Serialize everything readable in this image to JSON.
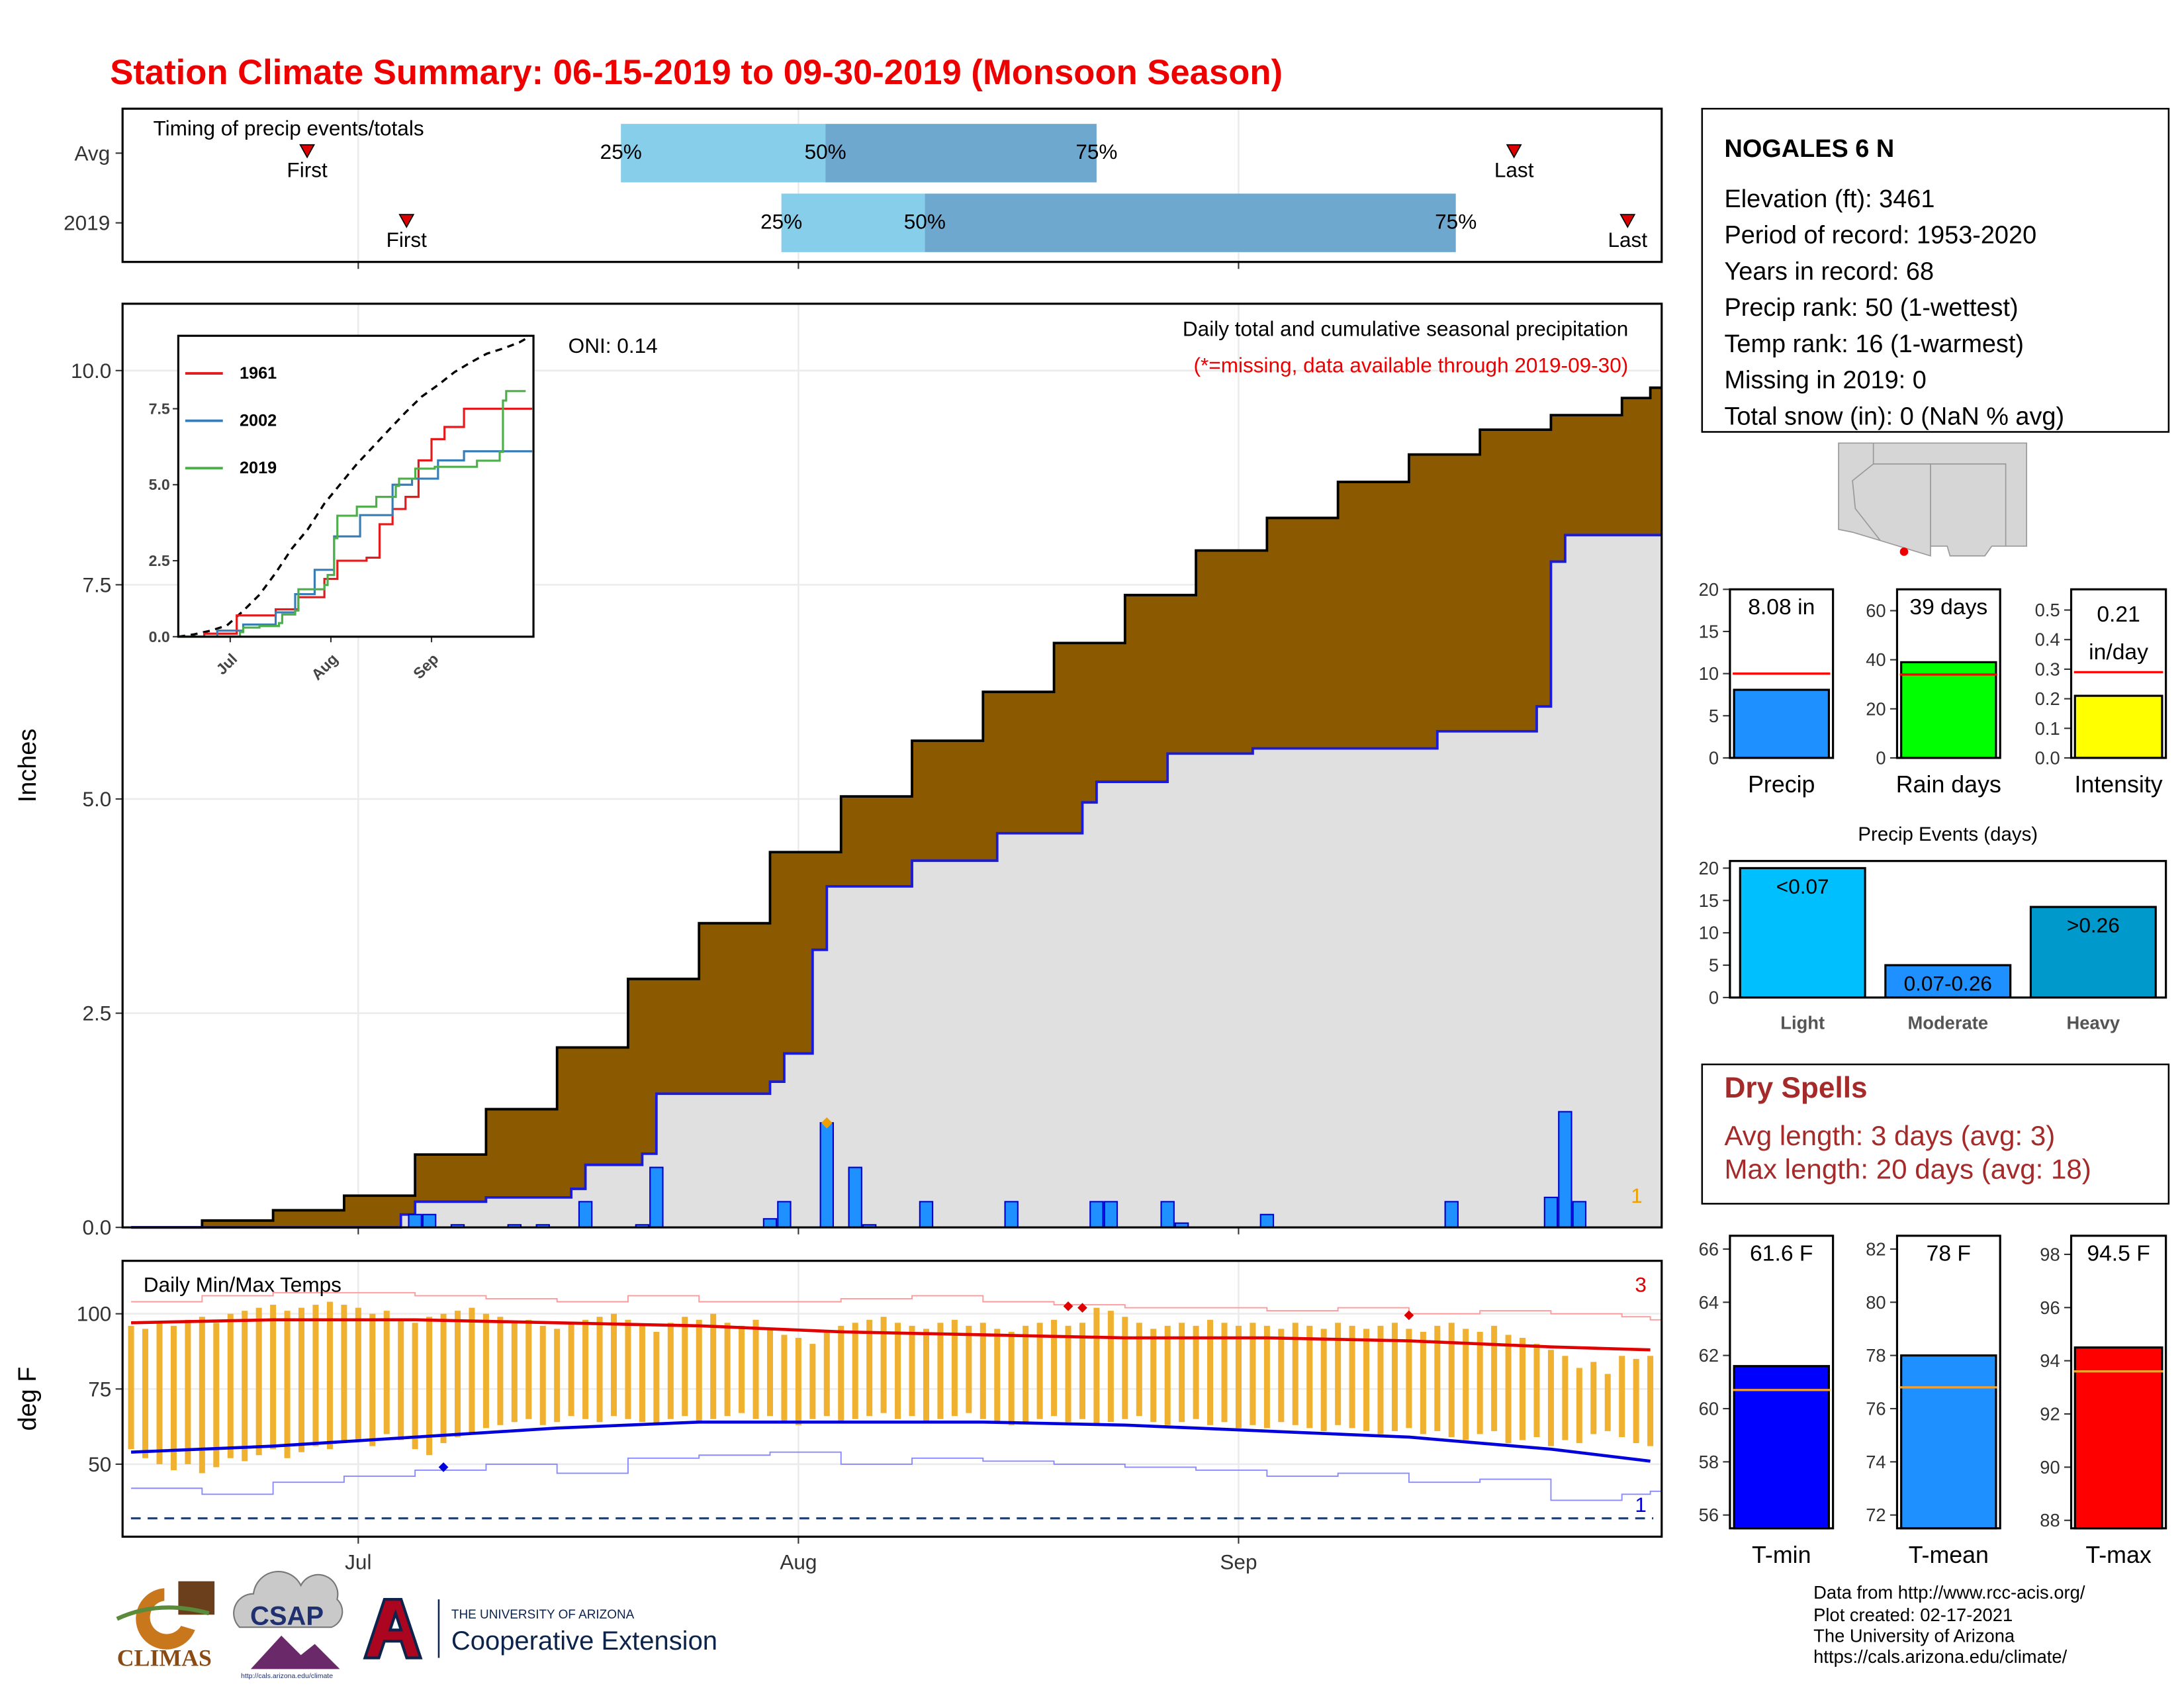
{
  "title": "Station Climate Summary: 06-15-2019 to 09-30-2019 (Monsoon Season)",
  "station": {
    "name": "NOGALES 6 N",
    "lines": [
      "Elevation (ft): 3461",
      "Period of record: 1953-2020",
      "Years in record: 68",
      "Precip rank: 50 (1-wettest)",
      "Temp rank: 16 (1-warmest)",
      "Missing in 2019: 0",
      "Total snow (in): 0 (NaN % avg)"
    ]
  },
  "dry_spells": {
    "title": "Dry Spells",
    "lines": [
      "Avg length: 3 days (avg: 3)",
      "Max length: 20 days (avg: 18)"
    ]
  },
  "footer": {
    "lines": [
      "Data from http://www.rcc-acis.org/",
      "Plot created: 02-17-2021",
      "The University of Arizona",
      "https://cals.arizona.edu/climate/"
    ]
  },
  "logos": {
    "climas": "CLIMAS",
    "csap": "CSAP",
    "csap_url": "http://cals.arizona.edu/climate",
    "ua_small": "THE UNIVERSITY OF ARIZONA",
    "ua_big": "Cooperative Extension"
  },
  "chart_data": [
    {
      "type": "timeline",
      "title": "Timing of precip events/totals",
      "xlim": [
        -0.6,
        107.8
      ],
      "xticks": [
        16,
        47,
        78
      ],
      "first_label": "First",
      "last_label": "Last",
      "quantile_labels": [
        "25%",
        "50%",
        "75%"
      ],
      "light_color": "#87ceeb",
      "dark_color": "#6fa8cf",
      "marker_color": "#dd0000",
      "rows": [
        {
          "name": "Avg",
          "first": 12.4,
          "q25": 34.5,
          "q50": 48.9,
          "q75": 68,
          "last": 97.4
        },
        {
          "name": "2019",
          "first": 19.4,
          "q25": 45.8,
          "q50": 55.9,
          "q75": 93.3,
          "last": 105.4
        }
      ]
    },
    {
      "type": "precip",
      "ylabel": "Inches",
      "annotation": "Daily total and cumulative seasonal precipitation",
      "note": "(*=missing, data available through 2019-09-30)",
      "oni": "ONI: 0.14",
      "record_count": 1,
      "xlim": [
        -0.6,
        107.8
      ],
      "xticks": [
        16,
        47,
        78
      ],
      "ylim": [
        0,
        10.78
      ],
      "yticks": [
        {
          "value": 0,
          "label": "0.0"
        },
        2.5,
        {
          "value": 5,
          "label": "5.0"
        },
        7.5,
        {
          "value": 10,
          "label": "10.0"
        }
      ],
      "avg_cumulative": {
        "color": "#8b5a00",
        "x": [
          0,
          5,
          10,
          15,
          20,
          25,
          30,
          35,
          40,
          45,
          50,
          55,
          60,
          65,
          70,
          75,
          80,
          85,
          90,
          95,
          100,
          105,
          107
        ],
        "values": [
          0,
          0.08,
          0.2,
          0.37,
          0.85,
          1.38,
          2.1,
          2.9,
          3.55,
          4.38,
          5.03,
          5.68,
          6.25,
          6.82,
          7.38,
          7.9,
          8.28,
          8.7,
          9.02,
          9.31,
          9.48,
          9.68,
          9.8
        ]
      },
      "cumulative": {
        "color": "#1a1adb",
        "x": [
          0,
          19,
          20,
          25,
          31,
          32,
          36,
          37,
          45,
          46,
          48,
          49,
          55,
          61,
          67,
          68,
          73,
          79,
          92,
          99,
          100,
          101,
          107
        ],
        "values": [
          0,
          0.15,
          0.3,
          0.35,
          0.45,
          0.73,
          0.86,
          1.56,
          1.7,
          2.03,
          3.24,
          3.98,
          4.28,
          4.6,
          4.96,
          5.2,
          5.53,
          5.59,
          5.79,
          6.08,
          7.77,
          8.08,
          8.08
        ]
      },
      "daily": {
        "color": "#1e90ff",
        "x": [
          20,
          21,
          23,
          27,
          29,
          32,
          36,
          37,
          45,
          46,
          49,
          51,
          52,
          56,
          62,
          68,
          69,
          73,
          74,
          80,
          93,
          100,
          101,
          102
        ],
        "values": [
          0.15,
          0.15,
          0.03,
          0.03,
          0.03,
          0.3,
          0.03,
          0.7,
          0.1,
          0.3,
          1.22,
          0.7,
          0.03,
          0.3,
          0.3,
          0.3,
          0.3,
          0.3,
          0.05,
          0.15,
          0.3,
          0.35,
          1.35,
          0.3
        ]
      },
      "records": {
        "color": "#f0a000",
        "x": [
          49
        ],
        "values": [
          1.22
        ]
      }
    },
    {
      "type": "line",
      "xlim": [
        0,
        109.4
      ],
      "ylim": [
        0,
        9.9
      ],
      "xticks": [
        {
          "value": 16,
          "label": "Jul"
        },
        {
          "value": 47,
          "label": "Aug"
        },
        {
          "value": 78,
          "label": "Sep"
        }
      ],
      "yticks": [
        {
          "value": 0,
          "label": "0.0"
        },
        2.5,
        {
          "value": 5,
          "label": "5.0"
        },
        7.5
      ],
      "avg": {
        "color": "#000000",
        "x": [
          0,
          5,
          10,
          15,
          20,
          25,
          30,
          35,
          40,
          45,
          50,
          55,
          60,
          65,
          70,
          75,
          80,
          85,
          90,
          95,
          100,
          105,
          107
        ],
        "values": [
          0,
          0.08,
          0.2,
          0.37,
          0.85,
          1.38,
          2.1,
          2.9,
          3.55,
          4.38,
          5.03,
          5.68,
          6.25,
          6.82,
          7.38,
          7.9,
          8.28,
          8.7,
          9.02,
          9.31,
          9.48,
          9.68,
          9.8
        ]
      },
      "series": [
        {
          "name": "1961",
          "color": "#e41a1c",
          "x": [
            0,
            8,
            18,
            30,
            37,
            45,
            49,
            58,
            62,
            66,
            70,
            74,
            78,
            82,
            88,
            109
          ],
          "values": [
            0,
            0.1,
            0.7,
            0.9,
            1.3,
            1.9,
            2.5,
            2.6,
            3.7,
            4.2,
            4.6,
            5.8,
            6.5,
            6.9,
            7.5,
            7.5
          ]
        },
        {
          "name": "2002",
          "color": "#377eb8",
          "x": [
            0,
            12,
            20,
            30,
            36,
            42,
            48,
            56,
            66,
            72,
            80,
            88,
            109
          ],
          "values": [
            0,
            0.2,
            0.4,
            0.8,
            1.4,
            2.2,
            3.3,
            4,
            5,
            5.2,
            5.8,
            6.1,
            6.1
          ]
        },
        {
          "name": "2019",
          "color": "#4daf4a",
          "x": [
            0,
            19,
            20,
            25,
            31,
            32,
            36,
            37,
            45,
            46,
            48,
            49,
            55,
            61,
            67,
            68,
            73,
            79,
            92,
            99,
            100,
            101,
            107
          ],
          "values": [
            0,
            0.15,
            0.3,
            0.35,
            0.45,
            0.73,
            0.86,
            1.56,
            1.7,
            2.03,
            3.24,
            3.98,
            4.28,
            4.6,
            4.96,
            5.2,
            5.53,
            5.59,
            5.79,
            6.08,
            7.77,
            8.08,
            8.08
          ]
        }
      ]
    },
    {
      "type": "temps",
      "title": "Daily Min/Max Temps",
      "ylabel": "deg F",
      "record_high_count": 3,
      "record_low_count": 1,
      "xlim": [
        -0.6,
        107.8
      ],
      "ylim": [
        25.9,
        117.6
      ],
      "yticks": [
        50,
        75,
        100
      ],
      "xticks": [
        {
          "value": 16,
          "label": "Jul"
        },
        {
          "value": 47,
          "label": "Aug"
        },
        {
          "value": 78,
          "label": "Sep"
        }
      ],
      "freeze": 32,
      "color": "#f0b030",
      "x": [
        0,
        1,
        2,
        3,
        4,
        5,
        6,
        7,
        8,
        9,
        10,
        11,
        12,
        13,
        14,
        15,
        16,
        17,
        18,
        19,
        20,
        21,
        22,
        23,
        24,
        25,
        26,
        27,
        28,
        29,
        30,
        31,
        32,
        33,
        34,
        35,
        36,
        37,
        38,
        39,
        40,
        41,
        42,
        43,
        44,
        45,
        46,
        47,
        48,
        49,
        50,
        51,
        52,
        53,
        54,
        55,
        56,
        57,
        58,
        59,
        60,
        61,
        62,
        63,
        64,
        65,
        66,
        67,
        68,
        69,
        70,
        71,
        72,
        73,
        74,
        75,
        76,
        77,
        78,
        79,
        80,
        81,
        82,
        83,
        84,
        85,
        86,
        87,
        88,
        89,
        90,
        91,
        92,
        93,
        94,
        95,
        96,
        97,
        98,
        99,
        100,
        101,
        102,
        103,
        104,
        105,
        106,
        107
      ],
      "max": [
        96,
        95,
        97,
        96,
        98,
        99,
        97,
        100,
        101,
        102,
        103,
        101,
        102,
        103,
        104,
        103,
        102,
        100,
        101,
        98,
        97,
        99,
        100,
        101,
        102,
        100,
        99,
        97,
        98,
        96,
        95,
        97,
        98,
        99,
        100,
        98,
        96,
        94,
        97,
        99,
        98,
        100,
        97,
        96,
        98,
        95,
        93,
        92,
        90,
        94,
        96,
        97,
        98,
        99,
        97,
        96,
        95,
        97,
        98,
        96,
        97,
        95,
        94,
        96,
        97,
        98,
        96,
        97,
        102,
        101,
        99,
        97,
        95,
        96,
        97,
        96,
        98,
        97,
        96,
        97,
        96,
        95,
        97,
        96,
        95,
        97,
        96,
        95,
        96,
        97,
        95,
        94,
        96,
        97,
        95,
        94,
        96,
        93,
        92,
        90,
        88,
        86,
        82,
        84,
        80,
        86,
        85,
        86
      ],
      "min": [
        55,
        52,
        50,
        48,
        50,
        47,
        49,
        52,
        51,
        53,
        55,
        52,
        54,
        56,
        55,
        57,
        58,
        56,
        60,
        58,
        55,
        53,
        57,
        59,
        60,
        62,
        63,
        64,
        65,
        63,
        64,
        66,
        65,
        64,
        66,
        65,
        64,
        63,
        65,
        66,
        64,
        65,
        66,
        67,
        65,
        66,
        64,
        63,
        65,
        66,
        64,
        65,
        66,
        67,
        65,
        66,
        64,
        65,
        66,
        67,
        65,
        64,
        63,
        64,
        65,
        66,
        64,
        65,
        63,
        64,
        65,
        66,
        64,
        63,
        64,
        65,
        63,
        64,
        62,
        63,
        62,
        64,
        63,
        62,
        61,
        63,
        62,
        61,
        60,
        61,
        62,
        60,
        61,
        59,
        58,
        60,
        61,
        57,
        58,
        59,
        56,
        58,
        57,
        60,
        61,
        59,
        57,
        56
      ],
      "normal_high": {
        "color": "#e00000",
        "x": [
          0,
          10,
          20,
          30,
          40,
          50,
          60,
          70,
          80,
          90,
          100,
          107
        ],
        "values": [
          97,
          98,
          98,
          97,
          96,
          94,
          93,
          92,
          92,
          91,
          89,
          88
        ]
      },
      "normal_low": {
        "color": "#0000dd",
        "x": [
          0,
          10,
          20,
          30,
          40,
          50,
          60,
          70,
          80,
          90,
          100,
          107
        ],
        "values": [
          54,
          56,
          59,
          62,
          64,
          64,
          64,
          63,
          61,
          59,
          55,
          51
        ]
      },
      "record_high": {
        "color": "#ff9a9a",
        "x": [
          0,
          5,
          10,
          15,
          20,
          25,
          30,
          35,
          40,
          45,
          50,
          55,
          60,
          65,
          70,
          75,
          80,
          85,
          90,
          95,
          100,
          105,
          107
        ],
        "values": [
          104,
          106,
          107,
          107,
          106,
          105,
          104,
          106,
          104,
          104,
          105,
          106,
          104,
          103,
          102,
          102,
          101,
          102,
          100,
          101,
          100,
          99,
          98
        ]
      },
      "record_low": {
        "color": "#8a8aff",
        "x": [
          0,
          5,
          10,
          15,
          20,
          25,
          30,
          35,
          40,
          45,
          50,
          55,
          60,
          65,
          70,
          75,
          80,
          85,
          90,
          95,
          100,
          105,
          107
        ],
        "values": [
          42,
          40,
          44,
          46,
          48,
          50,
          47,
          52,
          53,
          54,
          50,
          52,
          51,
          50,
          49,
          48,
          46,
          47,
          44,
          45,
          38,
          40,
          41
        ]
      },
      "record_highs": {
        "color": "#e00000",
        "x": [
          66,
          67,
          90
        ],
        "values": [
          102.5,
          102,
          99.5
        ]
      },
      "record_lows": {
        "color": "#0000dd",
        "x": [
          22
        ],
        "values": [
          49
        ]
      }
    },
    {
      "type": "bar",
      "categories": [
        "Precip"
      ],
      "values": [
        8.08
      ],
      "value_labels": [
        "8.08 in"
      ],
      "normal": 10,
      "normal_color": "#ff0000",
      "color": "#1e90ff",
      "ylim": [
        0,
        20
      ],
      "yticks": [
        0,
        5,
        10,
        15,
        20
      ]
    },
    {
      "type": "bar",
      "categories": [
        "Rain days"
      ],
      "values": [
        39
      ],
      "value_labels": [
        "39 days"
      ],
      "normal": 34,
      "normal_color": "#ff0000",
      "color": "#00ff00",
      "ylim": [
        0,
        68.7
      ],
      "yticks": [
        0,
        20,
        40,
        60
      ]
    },
    {
      "type": "bar",
      "categories": [
        "Intensity"
      ],
      "values": [
        0.21
      ],
      "value_labels": [
        "0.21 in/day"
      ],
      "normal": 0.29,
      "normal_color": "#ff0000",
      "color": "#ffff00",
      "ylim": [
        0,
        0.57
      ],
      "yticks": [
        {
          "value": 0,
          "label": "0.0"
        },
        0.1,
        0.2,
        0.3,
        0.4,
        0.5
      ]
    },
    {
      "type": "bar",
      "title": "Precip Events (days)",
      "categories": [
        "Light",
        "Moderate",
        "Heavy"
      ],
      "values": [
        20,
        5,
        14
      ],
      "class_labels": [
        "<0.07",
        "0.07-0.26",
        ">0.26"
      ],
      "colors": [
        "#00bfff",
        "#1e90ff",
        "#0099cc"
      ],
      "ylim": [
        0,
        21.1
      ],
      "yticks": [
        0,
        5,
        10,
        15,
        20
      ]
    },
    {
      "type": "bar",
      "categories": [
        "T-min"
      ],
      "values": [
        61.6
      ],
      "value_labels": [
        "61.6 F"
      ],
      "normal": 60.7,
      "normal_color": "#f0a030",
      "color": "#0000ff",
      "ylim": [
        55.5,
        66.5
      ],
      "yticks": [
        56,
        58,
        60,
        62,
        64,
        66
      ]
    },
    {
      "type": "bar",
      "categories": [
        "T-mean"
      ],
      "values": [
        78
      ],
      "value_labels": [
        "78 F"
      ],
      "normal": 76.8,
      "normal_color": "#f0a030",
      "color": "#1e90ff",
      "ylim": [
        71.5,
        82.5
      ],
      "yticks": [
        72,
        74,
        76,
        78,
        80,
        82
      ]
    },
    {
      "type": "bar",
      "categories": [
        "T-max"
      ],
      "values": [
        94.5
      ],
      "value_labels": [
        "94.5 F"
      ],
      "normal": 93.6,
      "normal_color": "#f0a030",
      "color": "#ff0000",
      "ylim": [
        87.7,
        98.7
      ],
      "yticks": [
        88,
        90,
        92,
        94,
        96,
        98
      ]
    }
  ]
}
